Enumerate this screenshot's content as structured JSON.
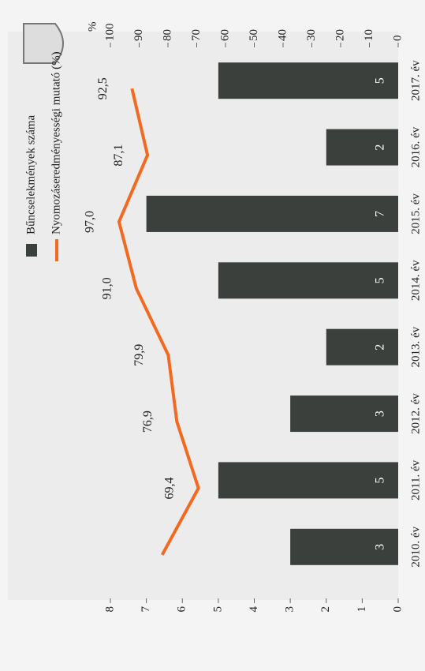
{
  "chart_data": {
    "type": "bar",
    "categories": [
      "2010. év",
      "2011. év",
      "2012. év",
      "2013. év",
      "2014. év",
      "2015. év",
      "2016. év",
      "2017. év"
    ],
    "series": [
      {
        "name": "Bűncselekmények száma",
        "color": "#3b403d",
        "values": [
          3,
          5,
          3,
          2,
          5,
          7,
          2,
          5
        ]
      },
      {
        "name": "Nyomozáseredményességi mutató (%)",
        "color": "#f26a21",
        "type": "line",
        "axis": "y2",
        "values": [
          82,
          69.4,
          76.9,
          79.9,
          91.0,
          97.0,
          87.1,
          92.5
        ],
        "value_labels": [
          null,
          "69,4",
          "76,9",
          "79,9",
          "91,0",
          "97,0",
          "87,1",
          "92,5"
        ]
      }
    ],
    "ylim": [
      0,
      8
    ],
    "yticks": [
      0,
      1,
      2,
      3,
      4,
      5,
      6,
      7,
      8
    ],
    "y2lim": [
      0,
      100
    ],
    "y2ticks": [
      0,
      10,
      20,
      30,
      40,
      50,
      60,
      70,
      80,
      90,
      100
    ],
    "y2_label": "%"
  }
}
